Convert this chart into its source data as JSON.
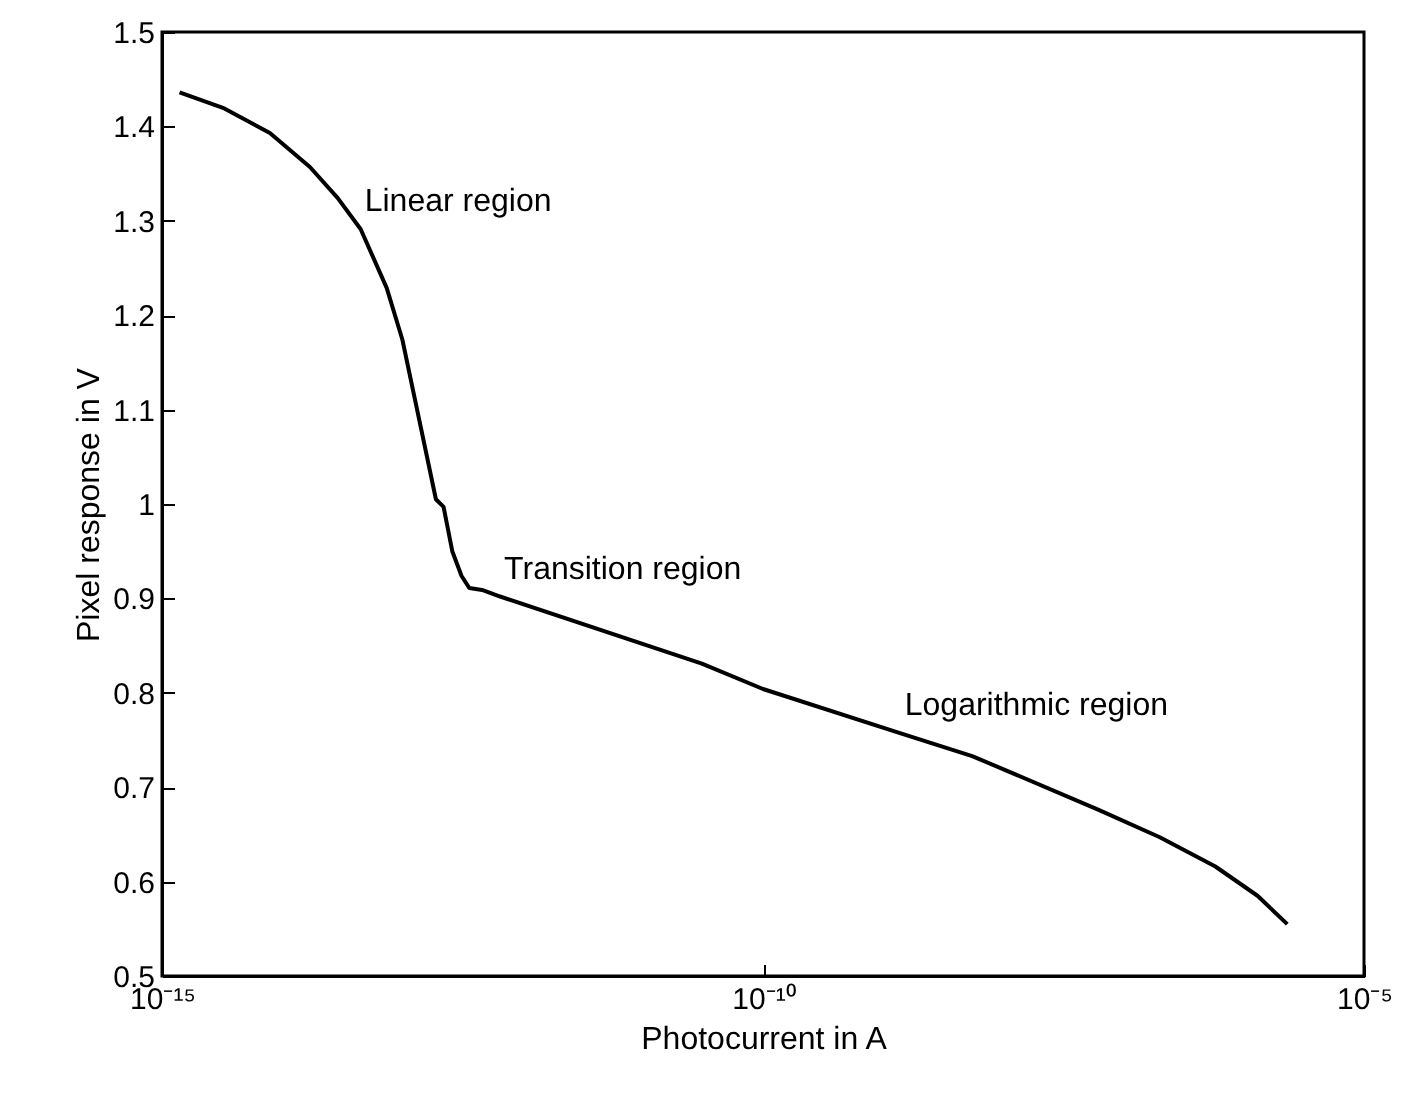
{
  "chart_data": {
    "type": "line",
    "xlabel": "Photocurrent in A",
    "ylabel": "Pixel response in V",
    "log": "x",
    "grid": false,
    "x": [
      1.4e-15,
      3.3e-15,
      7.9e-15,
      1.7e-14,
      2.9e-14,
      4.5e-14,
      7.4e-14,
      1e-13,
      1.3e-13,
      1.9e-13,
      2.2e-13,
      2.6e-13,
      3.1e-13,
      3.6e-13,
      4.6e-13,
      6.5e-13,
      3.1e-11,
      1e-10,
      1.4e-09,
      5.5e-09,
      6.2e-08,
      2e-07,
      5.8e-07,
      1.3e-06,
      2.3e-06
    ],
    "series": [
      {
        "color": "#000000",
        "values": [
          1.436,
          1.419,
          1.393,
          1.357,
          1.324,
          1.291,
          1.229,
          1.174,
          1.105,
          1.005,
          0.997,
          0.95,
          0.924,
          0.911,
          0.909,
          0.902,
          0.831,
          0.804,
          0.757,
          0.733,
          0.676,
          0.647,
          0.616,
          0.585,
          0.555
        ]
      }
    ],
    "xlim": [
      1e-15,
      1e-05
    ],
    "xticks": [
      {
        "value": 1e-15,
        "label": "10⁻¹⁵"
      },
      {
        "value": 1e-10,
        "label": "10⁻¹⁰"
      },
      {
        "value": 1e-05,
        "label": "10⁻⁵"
      }
    ],
    "ylim": [
      0.5,
      1.5
    ],
    "yticks": [
      0.5,
      0.6,
      0.7,
      0.8,
      0.9,
      1,
      1.1,
      1.2,
      1.3,
      1.4,
      1.5
    ],
    "annotations": [
      {
        "text": "Linear region",
        "x": 4.5e-14,
        "y": 1.291
      },
      {
        "text": "Transition region",
        "x": 6.5e-13,
        "y": 0.902
      },
      {
        "text": "Logarithmic region",
        "x": 1.4e-09,
        "y": 0.757
      }
    ]
  }
}
